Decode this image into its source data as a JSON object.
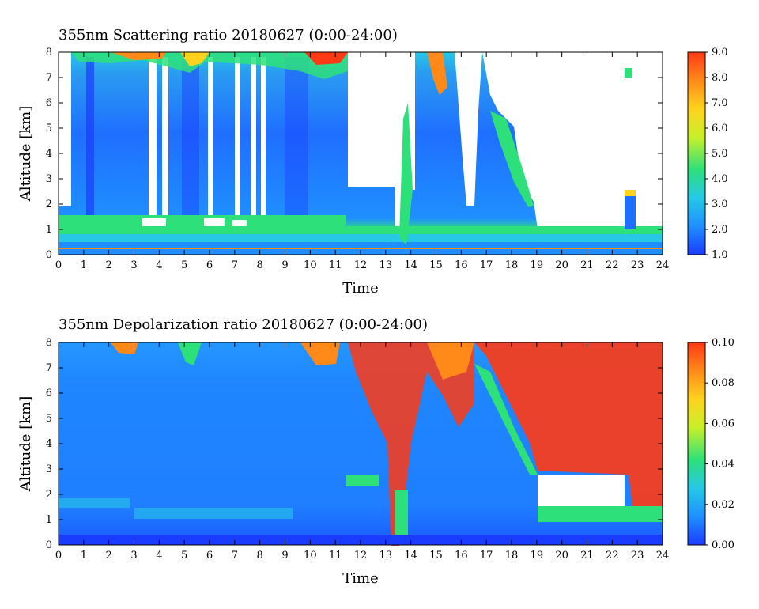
{
  "chart_data": [
    {
      "type": "heatmap",
      "title": "355nm Scattering ratio   20180627 (0:00-24:00)",
      "xlabel": "Time",
      "ylabel": "Altitude [km]",
      "xlim": [
        0,
        24
      ],
      "ylim": [
        0,
        8
      ],
      "x_ticks": [
        "0",
        "1",
        "2",
        "3",
        "4",
        "5",
        "6",
        "7",
        "8",
        "9",
        "10",
        "11",
        "12",
        "13",
        "14",
        "15",
        "16",
        "17",
        "18",
        "19",
        "20",
        "21",
        "22",
        "23",
        "24"
      ],
      "y_ticks": [
        "0",
        "1",
        "2",
        "3",
        "4",
        "5",
        "6",
        "7",
        "8"
      ],
      "colorbar": {
        "range": [
          1.0,
          9.0
        ],
        "ticks": [
          "1.0",
          "2.0",
          "3.0",
          "4.0",
          "5.0",
          "6.0",
          "7.0",
          "8.0",
          "9.0"
        ]
      }
    },
    {
      "type": "heatmap",
      "title": "355nm Depolarization ratio   20180627 (0:00-24:00)",
      "xlabel": "Time",
      "ylabel": "Altitude [km]",
      "xlim": [
        0,
        24
      ],
      "ylim": [
        0,
        8
      ],
      "x_ticks": [
        "0",
        "1",
        "2",
        "3",
        "4",
        "5",
        "6",
        "7",
        "8",
        "9",
        "10",
        "11",
        "12",
        "13",
        "14",
        "15",
        "16",
        "17",
        "18",
        "19",
        "20",
        "21",
        "22",
        "23",
        "24"
      ],
      "y_ticks": [
        "0",
        "1",
        "2",
        "3",
        "4",
        "5",
        "6",
        "7",
        "8"
      ],
      "colorbar": {
        "range": [
          0.0,
          0.1
        ],
        "ticks": [
          "0.00",
          "0.02",
          "0.04",
          "0.06",
          "0.08",
          "0.10"
        ]
      }
    }
  ],
  "colors": {
    "scale": [
      "#1a3cff",
      "#1f8fff",
      "#26c8e6",
      "#2ee07a",
      "#c8f02a",
      "#ffd21e",
      "#ff8a1a",
      "#ff3a14"
    ],
    "white": "#ffffff"
  }
}
